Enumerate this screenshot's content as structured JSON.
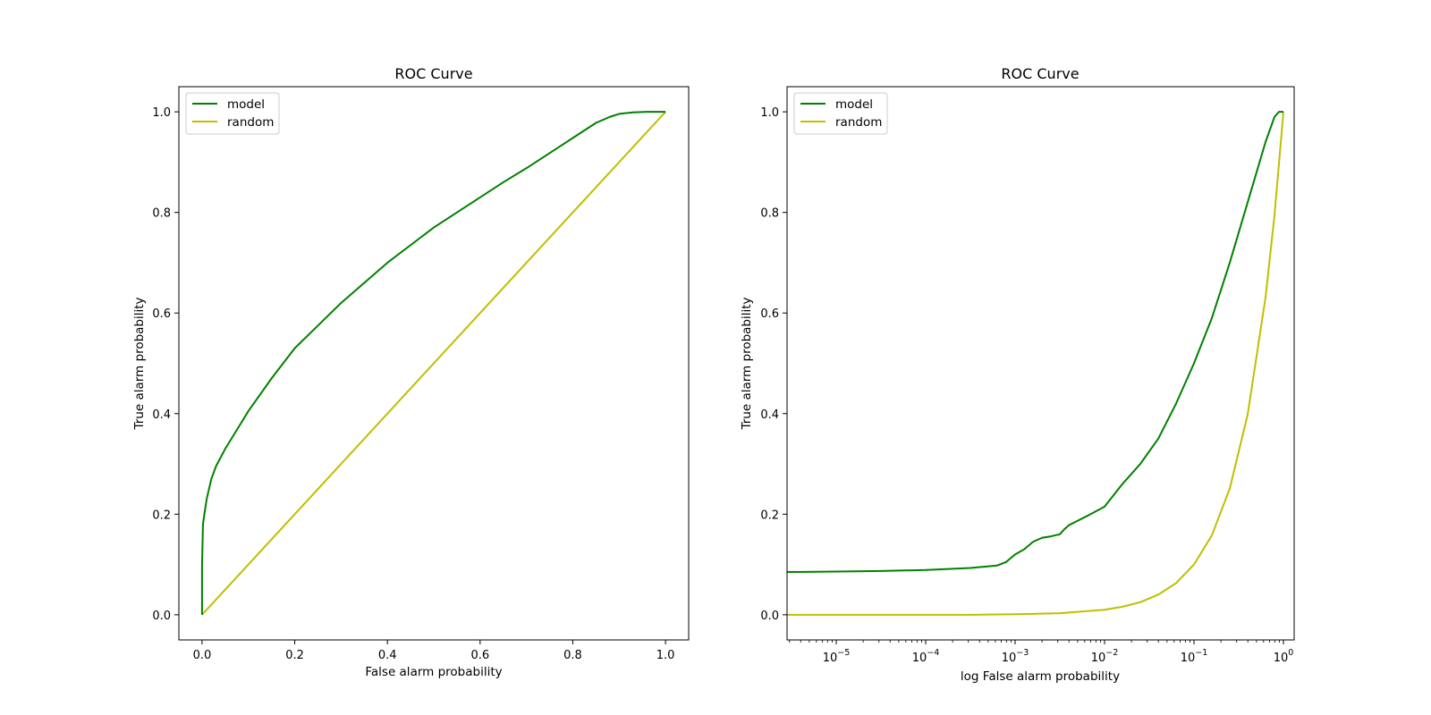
{
  "chart_data": [
    {
      "type": "line",
      "title": "ROC Curve",
      "xlabel": "False alarm probability",
      "ylabel": "True alarm probability",
      "xscale": "linear",
      "xlim": [
        -0.05,
        1.05
      ],
      "ylim": [
        -0.05,
        1.05
      ],
      "xticks": [
        0.0,
        0.2,
        0.4,
        0.6,
        0.8,
        1.0
      ],
      "xtick_labels": [
        "0.0",
        "0.2",
        "0.4",
        "0.6",
        "0.8",
        "1.0"
      ],
      "yticks": [
        0.0,
        0.2,
        0.4,
        0.6,
        0.8,
        1.0
      ],
      "ytick_labels": [
        "0.0",
        "0.2",
        "0.4",
        "0.6",
        "0.8",
        "1.0"
      ],
      "legend_position": "upper-left",
      "series": [
        {
          "name": "model",
          "color": "#008000",
          "x": [
            0,
            0,
            0.002,
            0.005,
            0.01,
            0.02,
            0.03,
            0.05,
            0.08,
            0.1,
            0.15,
            0.2,
            0.25,
            0.3,
            0.35,
            0.4,
            0.45,
            0.5,
            0.55,
            0.6,
            0.65,
            0.7,
            0.75,
            0.8,
            0.85,
            0.88,
            0.9,
            0.93,
            0.96,
            1.0
          ],
          "y": [
            0,
            0.1,
            0.18,
            0.2,
            0.23,
            0.27,
            0.295,
            0.33,
            0.375,
            0.405,
            0.47,
            0.53,
            0.575,
            0.62,
            0.66,
            0.7,
            0.735,
            0.77,
            0.8,
            0.83,
            0.86,
            0.888,
            0.918,
            0.948,
            0.978,
            0.99,
            0.996,
            0.999,
            1.0,
            1.0
          ]
        },
        {
          "name": "random",
          "color": "#bfbf00",
          "x": [
            0,
            1
          ],
          "y": [
            0,
            1
          ]
        }
      ]
    },
    {
      "type": "line",
      "title": "ROC Curve",
      "xlabel": "log False alarm probability",
      "ylabel": "True alarm probability",
      "xscale": "log",
      "xlim_log10": [
        -5.55,
        0.12
      ],
      "ylim": [
        -0.05,
        1.05
      ],
      "xticks_log10": [
        -5,
        -4,
        -3,
        -2,
        -1,
        0
      ],
      "xtick_labels": [
        {
          "base": "10",
          "exp": "−5"
        },
        {
          "base": "10",
          "exp": "−4"
        },
        {
          "base": "10",
          "exp": "−3"
        },
        {
          "base": "10",
          "exp": "−2"
        },
        {
          "base": "10",
          "exp": "−1"
        },
        {
          "base": "10",
          "exp": "0"
        }
      ],
      "yticks": [
        0.0,
        0.2,
        0.4,
        0.6,
        0.8,
        1.0
      ],
      "ytick_labels": [
        "0.0",
        "0.2",
        "0.4",
        "0.6",
        "0.8",
        "1.0"
      ],
      "legend_position": "upper-left",
      "series": [
        {
          "name": "model",
          "color": "#008000",
          "x_log10": [
            -5.55,
            -5.0,
            -4.5,
            -4.0,
            -3.5,
            -3.2,
            -3.1,
            -3.0,
            -2.9,
            -2.8,
            -2.7,
            -2.6,
            -2.5,
            -2.45,
            -2.4,
            -2.3,
            -2.2,
            -2.0,
            -1.8,
            -1.6,
            -1.4,
            -1.2,
            -1.0,
            -0.8,
            -0.6,
            -0.4,
            -0.2,
            -0.1,
            -0.05,
            0.0
          ],
          "y": [
            0.085,
            0.086,
            0.087,
            0.089,
            0.093,
            0.098,
            0.105,
            0.12,
            0.13,
            0.145,
            0.153,
            0.156,
            0.16,
            0.17,
            0.178,
            0.187,
            0.196,
            0.215,
            0.26,
            0.3,
            0.35,
            0.42,
            0.5,
            0.59,
            0.7,
            0.82,
            0.94,
            0.99,
            1.0,
            1.0
          ]
        },
        {
          "name": "random",
          "color": "#bfbf00",
          "x_log10": [
            -5.55,
            -4.5,
            -3.5,
            -3.0,
            -2.5,
            -2.0,
            -1.8,
            -1.6,
            -1.4,
            -1.2,
            -1.0,
            -0.8,
            -0.6,
            -0.4,
            -0.2,
            -0.1,
            0.0
          ],
          "y": [
            0.0,
            0.0,
            0.0,
            0.001,
            0.003,
            0.01,
            0.016,
            0.025,
            0.04,
            0.063,
            0.1,
            0.158,
            0.251,
            0.398,
            0.631,
            0.794,
            1.0
          ]
        }
      ]
    }
  ]
}
